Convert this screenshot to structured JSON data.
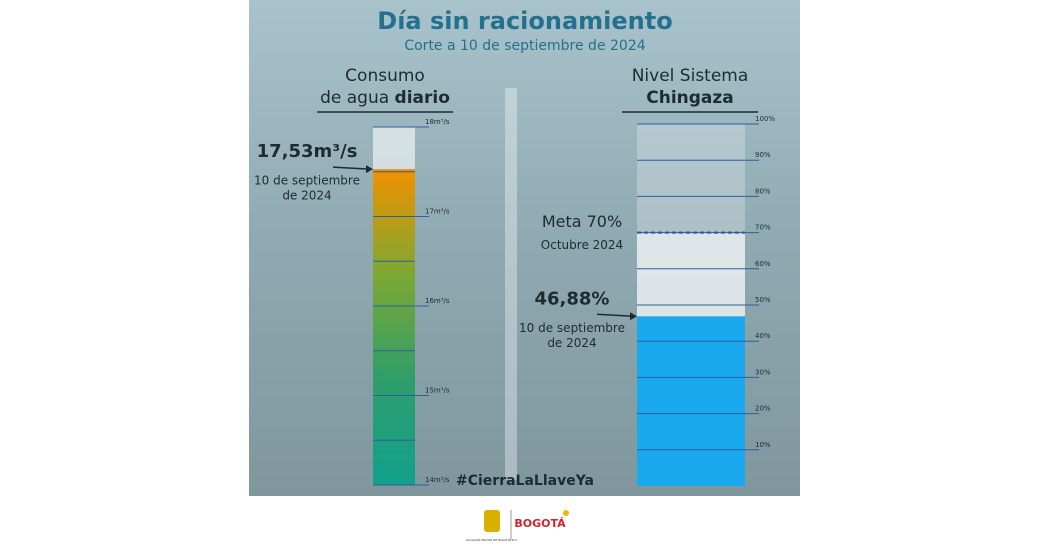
{
  "title": "Día sin racionamiento",
  "subtitle": "Corte a 10 de septiembre de 2024",
  "hashtag": "#CierraLaLlaveYa",
  "footer": {
    "shield_text": "ALCALDÍA MAYOR DE BOGOTÁ D.C.",
    "brand": "BOGOTÁ"
  },
  "chart_data": [
    {
      "type": "gauge",
      "title": "Consumo",
      "title_line2": "de agua",
      "title_bold": "diario",
      "values": [
        17.53
      ],
      "value_labels": [
        "17,53m³/s"
      ],
      "annotation": [
        "10 de septiembre",
        "de 2024"
      ],
      "colors": [
        "#12a08e",
        "#2e9e6a",
        "#7da832",
        "#f29100"
      ],
      "ylim": [
        14,
        18
      ],
      "yticks": [
        {
          "value": 14,
          "label": "14m³/s"
        },
        {
          "value": 15,
          "label": "15m³/s"
        },
        {
          "value": 16,
          "label": "16m³/s"
        },
        {
          "value": 17,
          "label": "17m³/s"
        },
        {
          "value": 18,
          "label": "18m³/s"
        }
      ],
      "minor_ticks": [
        14.5,
        15.5,
        16.5,
        17.5
      ]
    },
    {
      "type": "gauge",
      "title": "Nivel Sistema",
      "title_bold": "Chingaza",
      "values": [
        46.88
      ],
      "value_labels": [
        "46,88%"
      ],
      "annotation": [
        "10 de septiembre",
        "de 2024"
      ],
      "colors": [
        "#1aa9ef"
      ],
      "target": 70,
      "target_label": "Meta 70%",
      "target_annotation": "Octubre 2024",
      "ylim": [
        0,
        100
      ],
      "yticks": [
        {
          "value": 10,
          "label": "10%"
        },
        {
          "value": 20,
          "label": "20%"
        },
        {
          "value": 30,
          "label": "30%"
        },
        {
          "value": 40,
          "label": "40%"
        },
        {
          "value": 50,
          "label": "50%"
        },
        {
          "value": 60,
          "label": "60%"
        },
        {
          "value": 70,
          "label": "70%"
        },
        {
          "value": 80,
          "label": "80%"
        },
        {
          "value": 90,
          "label": "90%"
        },
        {
          "value": 100,
          "label": "100%"
        }
      ]
    }
  ]
}
